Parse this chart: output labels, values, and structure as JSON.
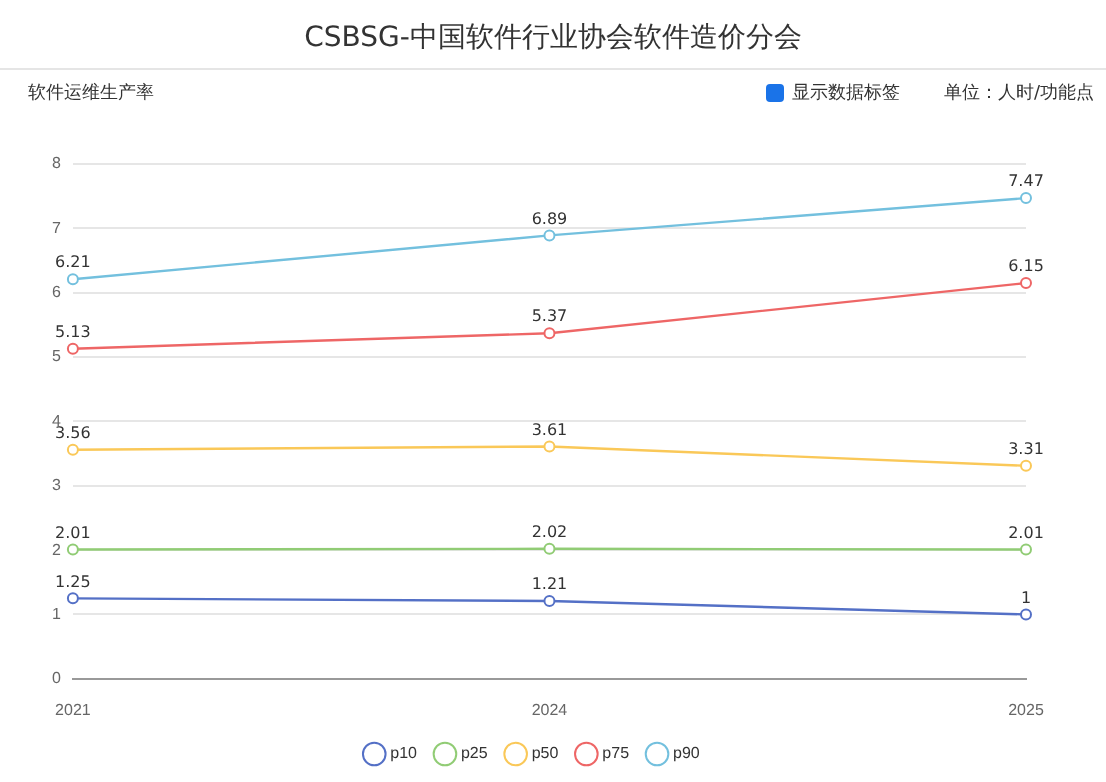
{
  "chart_data": {
    "type": "line",
    "title": "CSBSG-中国软件行业协会软件造价分会",
    "subtitle": "软件运维生产率",
    "annotations": [
      "显示数据标签",
      "单位：人时/功能点"
    ],
    "categories": [
      "2021",
      "2024",
      "2025"
    ],
    "series": [
      {
        "name": "p10",
        "color": "#5470c6",
        "values": [
          1.25,
          1.21,
          1
        ]
      },
      {
        "name": "p25",
        "color": "#91cc75",
        "values": [
          2.01,
          2.02,
          2.01
        ]
      },
      {
        "name": "p50",
        "color": "#fac858",
        "values": [
          3.56,
          3.61,
          3.31
        ]
      },
      {
        "name": "p75",
        "color": "#ee6666",
        "values": [
          5.13,
          5.37,
          6.15
        ]
      },
      {
        "name": "p90",
        "color": "#73c0de",
        "values": [
          6.21,
          6.89,
          7.47
        ]
      }
    ],
    "ylim": [
      0,
      8
    ],
    "yticks": [
      0,
      1,
      2,
      3,
      4,
      5,
      6,
      7,
      8
    ],
    "grid": "y",
    "legend": "bottom",
    "marker": "circle",
    "line_style": "solid",
    "data_labels": true
  }
}
